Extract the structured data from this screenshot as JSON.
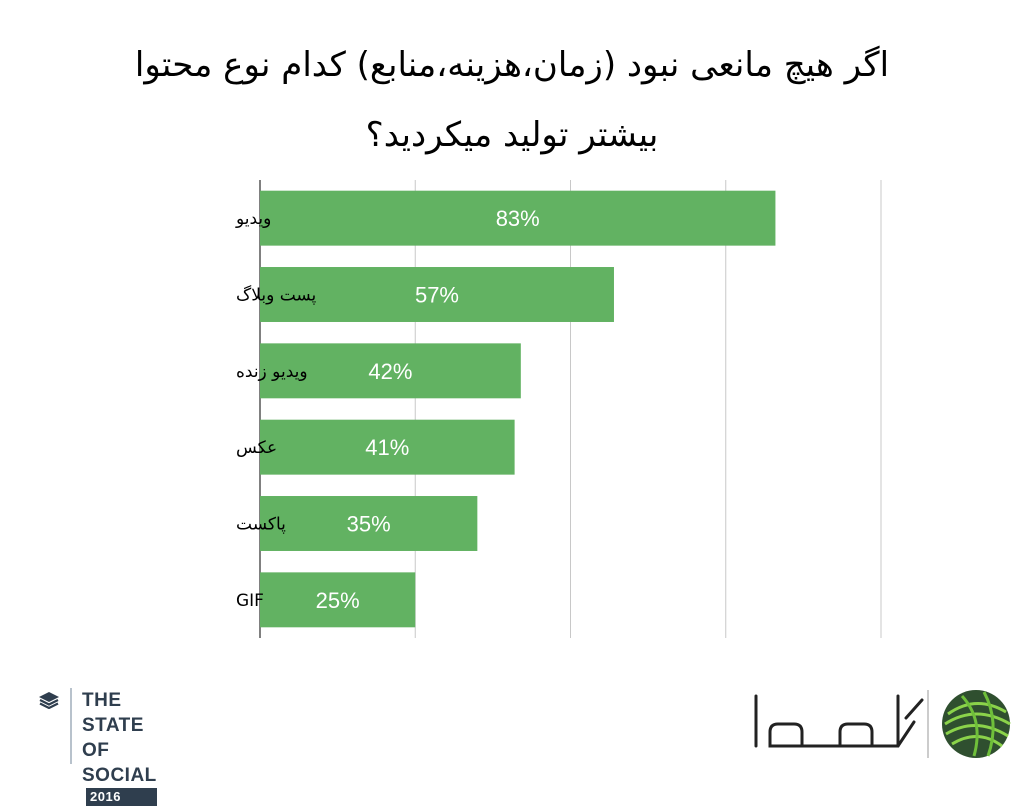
{
  "title_lines": [
    "اگر هیچ مانعی نبود (زمان،هزینه،منابع) کدام نوع محتوا",
    "بیشتر تولید میکردید؟"
  ],
  "chart_data": {
    "type": "bar",
    "orientation": "horizontal",
    "categories": [
      "ویدیو",
      "پست وبلاگ",
      "ویدیو زنده",
      "عکس",
      "پاکست",
      "GIF"
    ],
    "values": [
      83,
      57,
      42,
      41,
      35,
      25
    ],
    "value_labels": [
      "83%",
      "57%",
      "42%",
      "41%",
      "35%",
      "25%"
    ],
    "xlim": [
      0,
      100
    ],
    "grid": true,
    "bar_color": "#62b262"
  },
  "footer": {
    "left_brand_lines": [
      "THE",
      "STATE OF",
      "SOCIAL"
    ],
    "left_brand_year": "2016",
    "right_logo_icon": "yarn-ball-icon"
  }
}
